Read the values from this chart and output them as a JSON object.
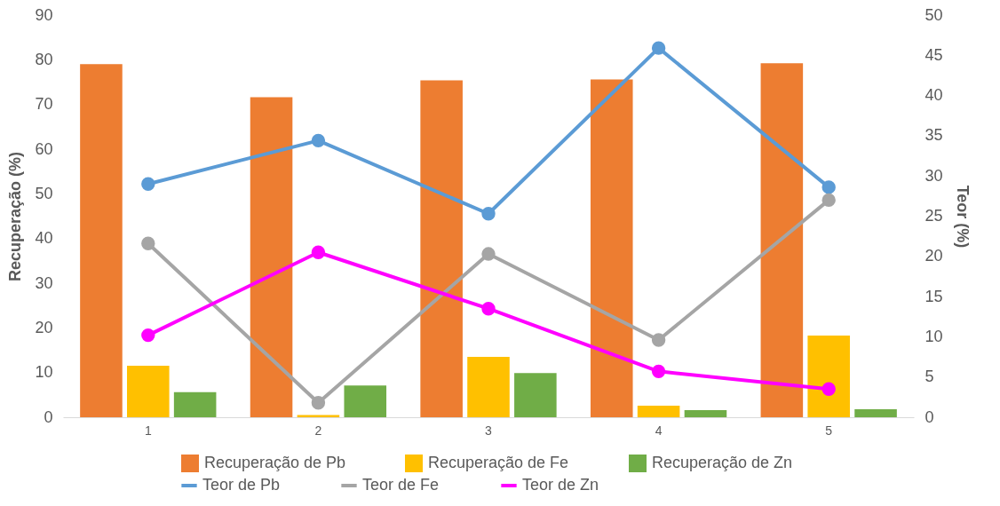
{
  "chart_data": {
    "type": "bar",
    "ylabel": "Recuperação (%)",
    "y2label": "Teor (%)",
    "categories": [
      "1",
      "2",
      "3",
      "4",
      "5"
    ],
    "ylim": [
      0,
      90
    ],
    "yticks": [
      0,
      10,
      20,
      30,
      40,
      50,
      60,
      70,
      80,
      90
    ],
    "y2lim": [
      0,
      50
    ],
    "y2ticks": [
      0,
      5,
      10,
      15,
      20,
      25,
      30,
      35,
      40,
      45,
      50
    ],
    "legend": "bottom",
    "grid": false,
    "marker": "circle",
    "series": [
      {
        "name": "Recuperação de Pb",
        "color": "#ed7d31",
        "values": [
          79.0,
          71.6,
          75.4,
          75.6,
          79.2
        ]
      },
      {
        "name": "Recuperação de Fe",
        "color": "#ffc000",
        "values": [
          11.5,
          0.5,
          13.5,
          2.6,
          18.3
        ]
      },
      {
        "name": "Recuperação de  Zn",
        "color": "#70ad47",
        "values": [
          5.6,
          7.1,
          9.9,
          1.6,
          1.8
        ]
      },
      {
        "name": "Teor de Pb",
        "type": "line",
        "axis": "y2",
        "color": "#5b9bd5",
        "values": [
          29.0,
          34.4,
          25.3,
          45.9,
          28.6
        ]
      },
      {
        "name": "Teor de Fe",
        "type": "line",
        "axis": "y2",
        "color": "#a5a5a5",
        "values": [
          21.6,
          1.8,
          20.3,
          9.6,
          27.0
        ]
      },
      {
        "name": "Teor de Zn",
        "type": "line",
        "axis": "y2",
        "color": "#ff00ff",
        "values": [
          10.2,
          20.5,
          13.5,
          5.7,
          3.5
        ]
      }
    ]
  }
}
